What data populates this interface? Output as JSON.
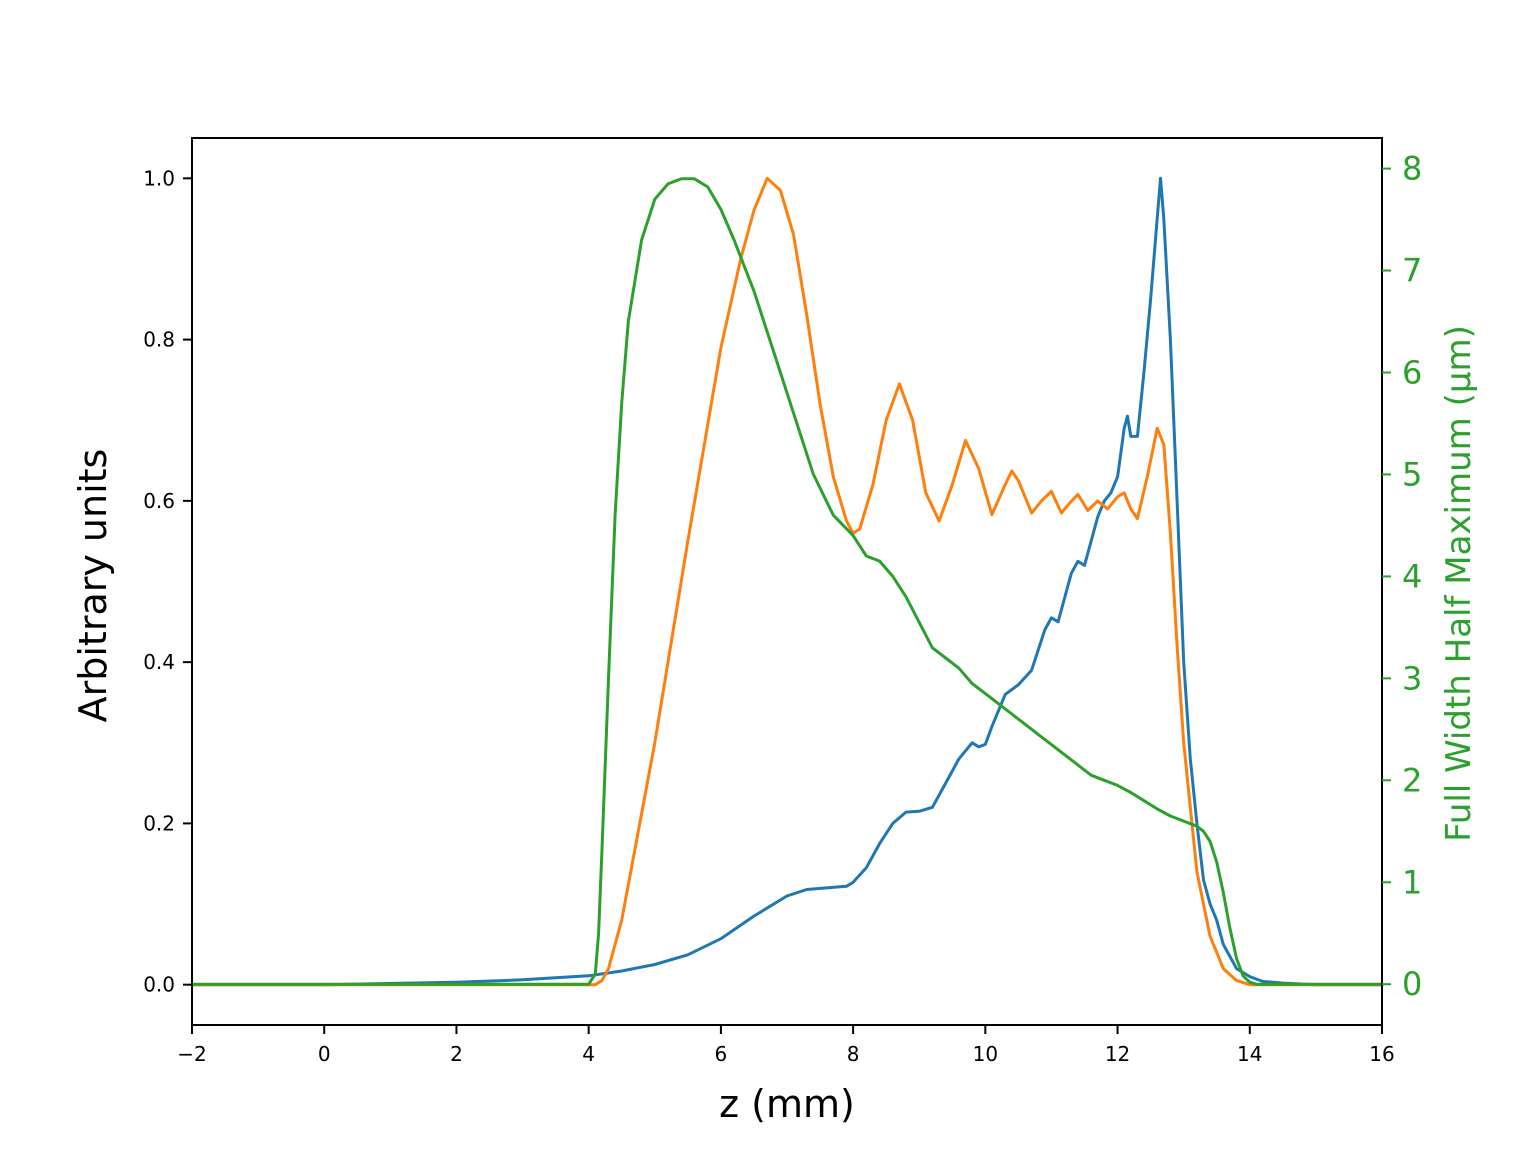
{
  "chart_data": {
    "type": "line",
    "title": "",
    "xlabel": "z (mm)",
    "ylabel": "Arbitrary units",
    "y2label": "Full Width Half Maximum (µm)",
    "xlim": [
      -2,
      16
    ],
    "ylim": [
      -0.05,
      1.05
    ],
    "y2lim": [
      -0.4,
      8.3
    ],
    "xticks": [
      "−2",
      "0",
      "2",
      "4",
      "6",
      "8",
      "10",
      "12",
      "14",
      "16"
    ],
    "xtick_values": [
      -2,
      0,
      2,
      4,
      6,
      8,
      10,
      12,
      14,
      16
    ],
    "yticks": [
      "0.0",
      "0.2",
      "0.4",
      "0.6",
      "0.8",
      "1.0"
    ],
    "ytick_values": [
      0,
      0.2,
      0.4,
      0.6,
      0.8,
      1.0
    ],
    "y2ticks": [
      "0",
      "1",
      "2",
      "3",
      "4",
      "5",
      "6",
      "7",
      "8"
    ],
    "y2tick_values": [
      0,
      1,
      2,
      3,
      4,
      5,
      6,
      7,
      8
    ],
    "grid": false,
    "legend": "none",
    "colors": {
      "blue": "#1f77b4",
      "orange": "#ff7f0e",
      "green": "#2ca02c",
      "axis": "#000000"
    },
    "series": [
      {
        "color": "#1f77b4",
        "axis": "left",
        "x": [
          -2,
          0,
          2,
          3,
          4,
          4.5,
          5,
          5.5,
          6,
          6.5,
          7,
          7.3,
          7.6,
          7.9,
          8,
          8.2,
          8.4,
          8.6,
          8.8,
          9.0,
          9.2,
          9.4,
          9.6,
          9.8,
          9.9,
          10.0,
          10.1,
          10.3,
          10.5,
          10.7,
          10.9,
          11.0,
          11.1,
          11.3,
          11.4,
          11.5,
          11.7,
          11.8,
          11.9,
          12.0,
          12.1,
          12.15,
          12.2,
          12.3,
          12.4,
          12.5,
          12.6,
          12.65,
          12.7,
          12.8,
          12.9,
          13.0,
          13.1,
          13.2,
          13.3,
          13.4,
          13.5,
          13.6,
          13.8,
          14.0,
          14.2,
          14.5,
          15,
          16
        ],
        "y": [
          0.0,
          0.0,
          0.003,
          0.006,
          0.011,
          0.017,
          0.025,
          0.037,
          0.057,
          0.085,
          0.11,
          0.118,
          0.12,
          0.122,
          0.127,
          0.145,
          0.175,
          0.2,
          0.214,
          0.215,
          0.22,
          0.25,
          0.28,
          0.3,
          0.295,
          0.298,
          0.32,
          0.36,
          0.372,
          0.39,
          0.44,
          0.455,
          0.45,
          0.51,
          0.525,
          0.52,
          0.58,
          0.6,
          0.61,
          0.63,
          0.69,
          0.705,
          0.68,
          0.68,
          0.76,
          0.85,
          0.95,
          1.0,
          0.95,
          0.8,
          0.6,
          0.4,
          0.28,
          0.2,
          0.13,
          0.1,
          0.08,
          0.05,
          0.02,
          0.01,
          0.004,
          0.002,
          0.0,
          0.0
        ]
      },
      {
        "color": "#ff7f0e",
        "axis": "left",
        "x": [
          -2,
          4.0,
          4.1,
          4.2,
          4.3,
          4.5,
          5.0,
          5.5,
          6.0,
          6.3,
          6.5,
          6.7,
          6.9,
          7.1,
          7.3,
          7.5,
          7.7,
          7.9,
          8.0,
          8.1,
          8.3,
          8.5,
          8.7,
          8.9,
          9.1,
          9.3,
          9.5,
          9.7,
          9.9,
          10.1,
          10.3,
          10.4,
          10.5,
          10.7,
          10.85,
          11.0,
          11.15,
          11.25,
          11.4,
          11.55,
          11.7,
          11.85,
          12.0,
          12.1,
          12.2,
          12.3,
          12.45,
          12.6,
          12.7,
          12.8,
          12.9,
          13.0,
          13.2,
          13.4,
          13.6,
          13.8,
          14.0,
          14.2,
          16
        ],
        "y": [
          0.0,
          0.0,
          0.0,
          0.005,
          0.02,
          0.08,
          0.3,
          0.55,
          0.79,
          0.9,
          0.96,
          1.0,
          0.985,
          0.93,
          0.83,
          0.72,
          0.63,
          0.575,
          0.56,
          0.565,
          0.62,
          0.7,
          0.745,
          0.7,
          0.61,
          0.575,
          0.62,
          0.675,
          0.64,
          0.583,
          0.62,
          0.637,
          0.625,
          0.585,
          0.6,
          0.612,
          0.585,
          0.595,
          0.608,
          0.588,
          0.6,
          0.59,
          0.605,
          0.61,
          0.59,
          0.578,
          0.63,
          0.69,
          0.67,
          0.56,
          0.42,
          0.3,
          0.14,
          0.06,
          0.02,
          0.005,
          0.0,
          0.0,
          0.0
        ]
      },
      {
        "color": "#2ca02c",
        "axis": "right",
        "x": [
          -2,
          4.0,
          4.1,
          4.15,
          4.2,
          4.3,
          4.4,
          4.5,
          4.6,
          4.8,
          5.0,
          5.2,
          5.4,
          5.6,
          5.8,
          6.0,
          6.2,
          6.5,
          6.8,
          7.1,
          7.4,
          7.7,
          8.0,
          8.2,
          8.4,
          8.6,
          8.8,
          9.0,
          9.2,
          9.4,
          9.6,
          9.8,
          10.0,
          10.2,
          10.4,
          10.6,
          10.8,
          11.0,
          11.2,
          11.4,
          11.6,
          11.8,
          12.0,
          12.2,
          12.4,
          12.6,
          12.8,
          13.0,
          13.2,
          13.3,
          13.4,
          13.5,
          13.6,
          13.7,
          13.8,
          13.9,
          14.0,
          14.1,
          16
        ],
        "y": [
          0.0,
          0.0,
          0.1,
          0.5,
          1.3,
          3.0,
          4.6,
          5.7,
          6.5,
          7.3,
          7.7,
          7.85,
          7.9,
          7.9,
          7.82,
          7.6,
          7.3,
          6.8,
          6.2,
          5.6,
          5.0,
          4.6,
          4.4,
          4.2,
          4.15,
          4.0,
          3.8,
          3.55,
          3.3,
          3.2,
          3.1,
          2.95,
          2.85,
          2.75,
          2.65,
          2.55,
          2.45,
          2.35,
          2.25,
          2.15,
          2.05,
          2.0,
          1.95,
          1.88,
          1.8,
          1.72,
          1.65,
          1.6,
          1.55,
          1.5,
          1.4,
          1.2,
          0.9,
          0.55,
          0.25,
          0.08,
          0.02,
          0.0,
          0.0
        ]
      }
    ]
  }
}
